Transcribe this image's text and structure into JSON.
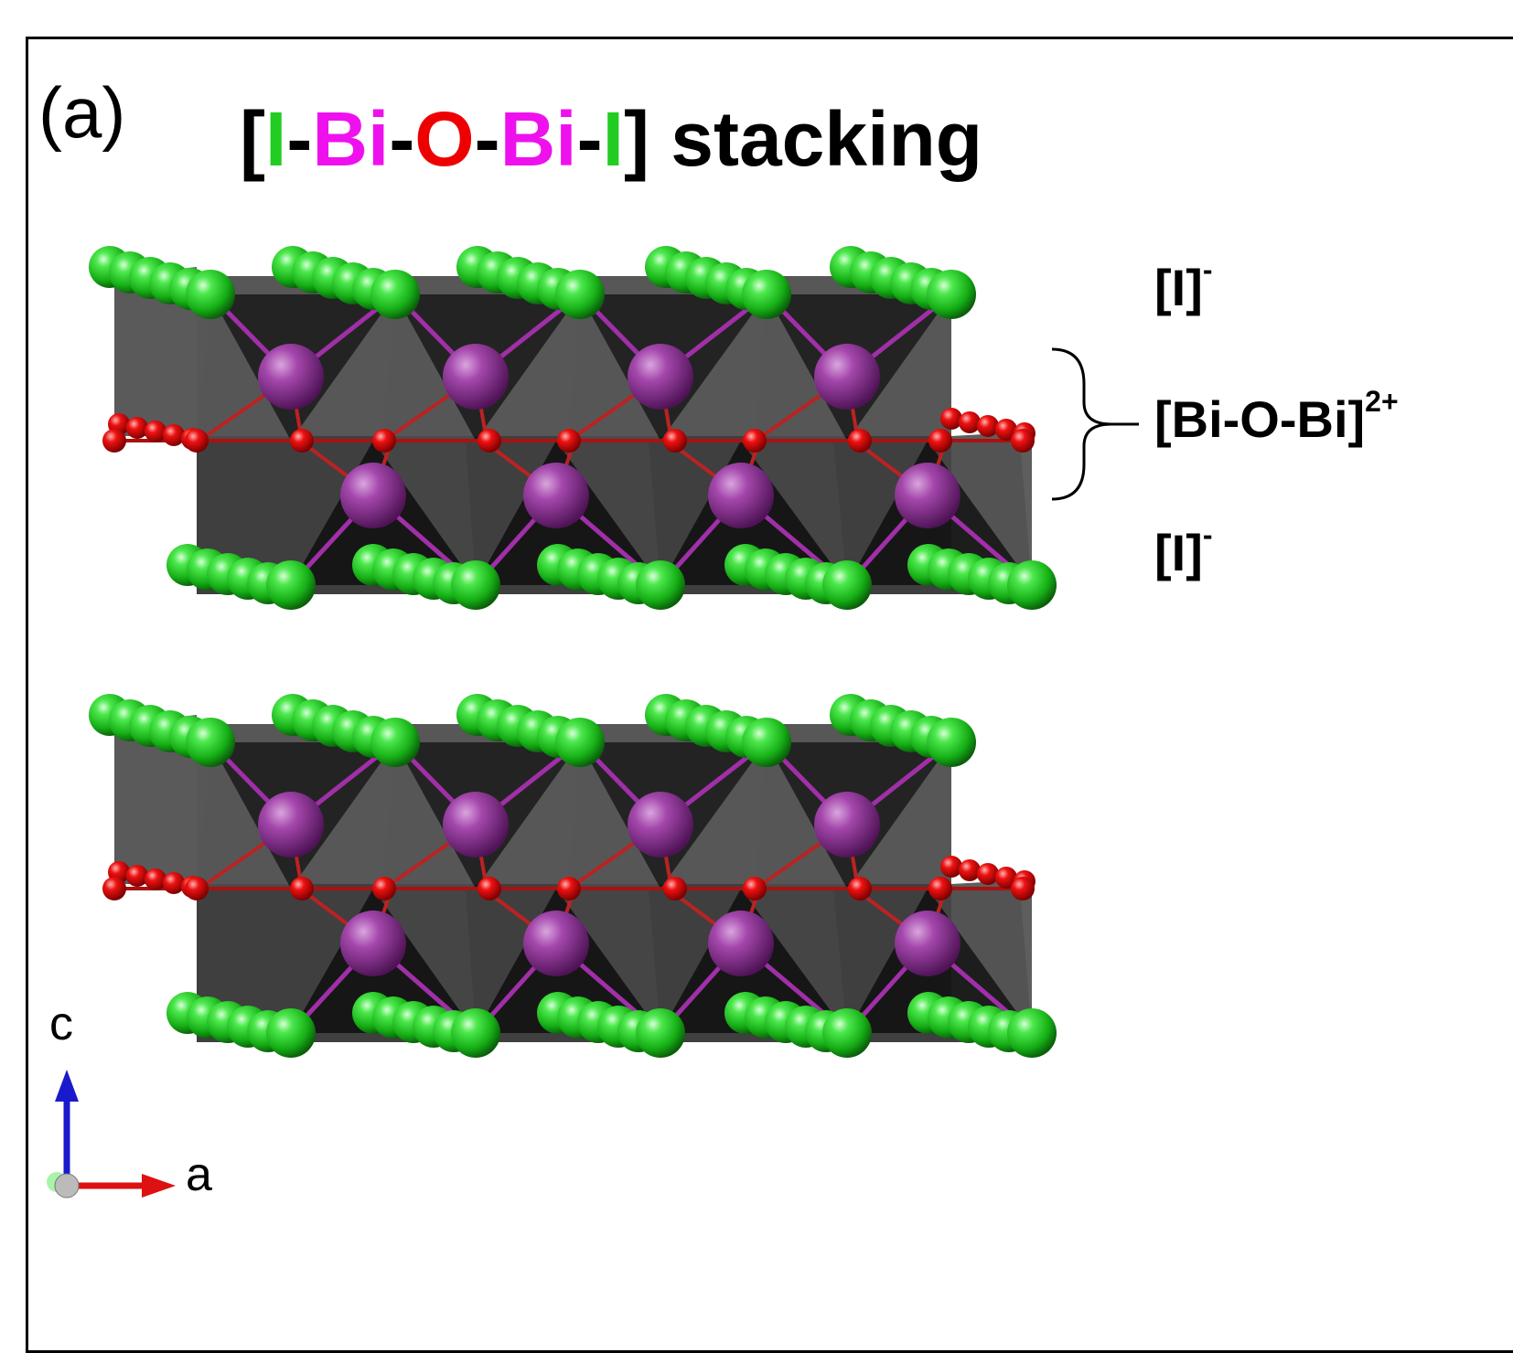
{
  "figure": {
    "panel_label": "(a)",
    "title": {
      "parts": [
        {
          "text": "[",
          "color": "#000000"
        },
        {
          "text": "I",
          "color": "#22cc22"
        },
        {
          "text": "-",
          "color": "#000000"
        },
        {
          "text": "Bi",
          "color": "#ee11ee"
        },
        {
          "text": "-",
          "color": "#000000"
        },
        {
          "text": "O",
          "color": "#ee0000"
        },
        {
          "text": "-",
          "color": "#000000"
        },
        {
          "text": "Bi",
          "color": "#ee11ee"
        },
        {
          "text": "-",
          "color": "#000000"
        },
        {
          "text": "I",
          "color": "#22cc22"
        },
        {
          "text": "] stacking",
          "color": "#000000"
        }
      ]
    },
    "layer_labels": {
      "top_iodide": {
        "text": "[I]",
        "sup": "-"
      },
      "bismuth_oxide": {
        "text": "[Bi-O-Bi]",
        "sup": "2+"
      },
      "bottom_iodide": {
        "text": "[I]",
        "sup": "-"
      }
    },
    "axes": {
      "c_label": "c",
      "a_label": "a",
      "c_color": "#1a1acc",
      "a_color": "#dd1111"
    },
    "atom_colors": {
      "iodine": "#22cc22",
      "bismuth": "#a03aa8",
      "oxygen": "#ee0000",
      "polyhedra": "#1a1a1a"
    },
    "layer_count": 2
  }
}
